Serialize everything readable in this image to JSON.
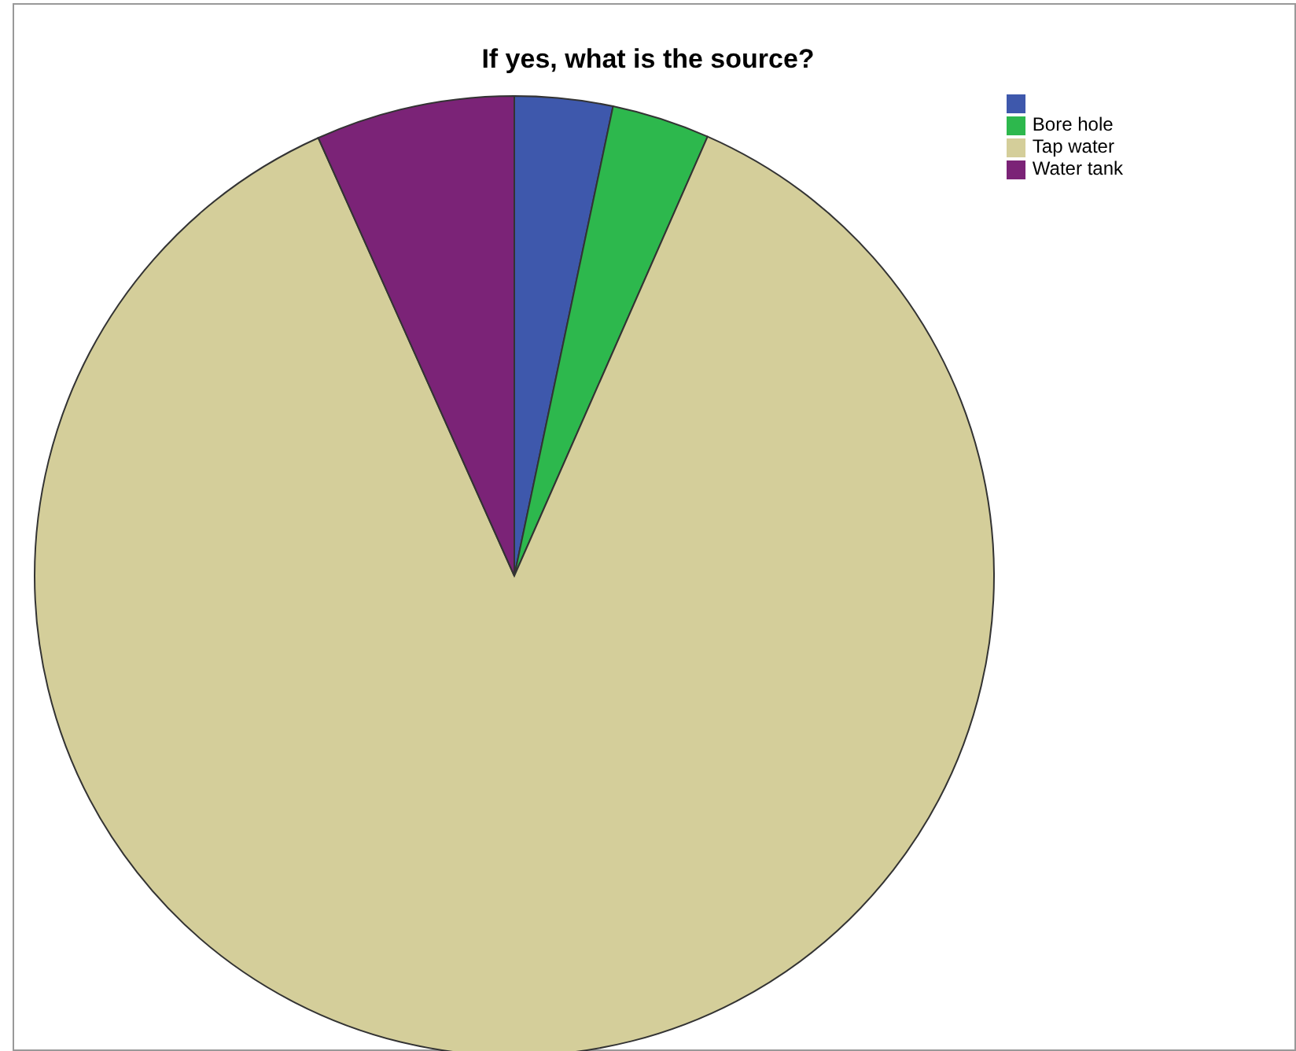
{
  "chart_data": {
    "type": "pie",
    "title": "If yes, what is the source?",
    "categories": [
      null,
      "Bore hole",
      "Tap water",
      "Water tank"
    ],
    "values": [
      3.3,
      3.3,
      86.7,
      6.7
    ],
    "colors": [
      "#3e58ac",
      "#2db84d",
      "#d4ce9a",
      "#7b2377"
    ],
    "legend": "top right"
  }
}
